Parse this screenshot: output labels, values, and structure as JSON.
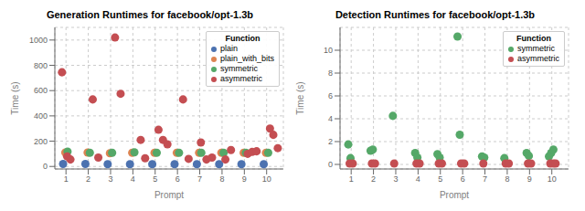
{
  "chart_data": [
    {
      "type": "scatter",
      "title": "Generation Runtimes for facebook/opt-1.3b",
      "x_label": "Prompt",
      "y_label": "Time (s)",
      "xlim": [
        0.5,
        10.75
      ],
      "ylim": [
        -20,
        1100
      ],
      "xticks": [
        1,
        2,
        3,
        4,
        5,
        6,
        7,
        8,
        9,
        10
      ],
      "yticks": [
        0,
        200,
        400,
        600,
        800,
        1000
      ],
      "grid": true,
      "legend": "upper right",
      "legend_title": "Function",
      "series": [
        {
          "name": "plain",
          "color": "#4c72b0",
          "x": [
            0.87,
            1.87,
            2.87,
            3.87,
            4.87,
            5.87,
            6.87,
            7.87,
            8.87,
            9.87
          ],
          "values": [
            20,
            20,
            18,
            18,
            18,
            18,
            18,
            18,
            18,
            18
          ]
        },
        {
          "name": "plain_with_bits",
          "color": "#dd8452",
          "x": [
            0.97,
            1.97,
            2.97,
            3.97,
            4.97,
            5.97,
            6.97,
            7.97,
            8.97,
            9.97
          ],
          "values": [
            110,
            110,
            105,
            108,
            108,
            108,
            108,
            108,
            108,
            108
          ]
        },
        {
          "name": "symmetric",
          "color": "#55a868",
          "x": [
            1.07,
            2.07,
            3.07,
            4.07,
            5.07,
            6.07,
            7.07,
            8.07,
            9.07,
            10.07
          ],
          "values": [
            118,
            108,
            108,
            112,
            108,
            108,
            108,
            108,
            108,
            108
          ]
        },
        {
          "name": "asymmetric",
          "color": "#c44e52",
          "x": [
            0.82,
            1.05,
            1.2,
            2.2,
            2.45,
            3.2,
            3.45,
            4.35,
            4.55,
            5.15,
            5.35,
            5.55,
            6.25,
            6.5,
            7.05,
            7.3,
            7.55,
            8.15,
            8.4,
            9.15,
            9.35,
            9.55,
            10.15,
            10.3,
            10.5
          ],
          "values": [
            745,
            80,
            55,
            530,
            70,
            1020,
            575,
            210,
            65,
            290,
            210,
            175,
            530,
            60,
            190,
            55,
            70,
            55,
            130,
            100,
            115,
            120,
            300,
            250,
            145
          ]
        }
      ]
    },
    {
      "type": "scatter",
      "title": "Detection Runtimes for facebook/opt-1.3b",
      "x_label": "Prompt",
      "y_label": "Time (s)",
      "xlim": [
        0.5,
        10.75
      ],
      "ylim": [
        -0.4,
        12
      ],
      "xticks": [
        1,
        2,
        3,
        4,
        5,
        6,
        7,
        8,
        9,
        10
      ],
      "yticks": [
        0,
        2,
        4,
        6,
        8,
        10
      ],
      "grid": true,
      "legend": "upper right",
      "legend_title": "Function",
      "series": [
        {
          "name": "symmetric",
          "color": "#55a868",
          "x": [
            0.87,
            0.97,
            1.87,
            1.97,
            2.87,
            3.87,
            3.97,
            4.87,
            4.97,
            5.77,
            5.87,
            6.87,
            6.97,
            7.87,
            8.87,
            8.97,
            9.87,
            9.97,
            10.07
          ],
          "values": [
            1.75,
            0.55,
            1.2,
            1.3,
            4.25,
            1.0,
            0.6,
            0.9,
            0.6,
            11.2,
            2.6,
            0.7,
            0.6,
            0.55,
            1.0,
            0.75,
            0.7,
            1.0,
            1.3
          ]
        },
        {
          "name": "asymmetric",
          "color": "#c44e52",
          "x": [
            0.93,
            1.07,
            1.93,
            2.07,
            2.93,
            3.93,
            4.07,
            4.93,
            5.07,
            5.93,
            6.07,
            6.93,
            7.93,
            8.07,
            8.93,
            9.07,
            9.93,
            10.07,
            10.17
          ],
          "values": [
            0.08,
            0.08,
            0.08,
            0.08,
            0.08,
            0.08,
            0.08,
            0.08,
            0.08,
            0.08,
            0.08,
            0.08,
            0.08,
            0.08,
            0.08,
            0.08,
            0.08,
            0.08,
            0.08
          ]
        }
      ]
    }
  ]
}
